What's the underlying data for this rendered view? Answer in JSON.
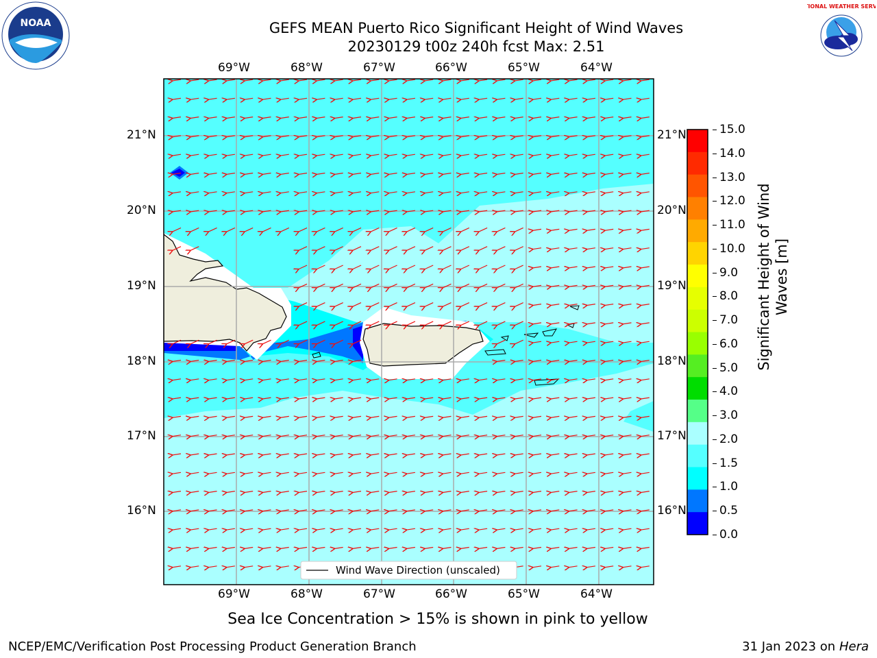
{
  "title_line1": "GEFS MEAN Puerto Rico Significant Height of Wind Waves",
  "title_line2": "20230129 t00z 240h fcst   Max: 2.51",
  "lon_labels": [
    "69°W",
    "68°W",
    "67°W",
    "66°W",
    "65°W",
    "64°W"
  ],
  "lat_labels": [
    "21°N",
    "20°N",
    "19°N",
    "18°N",
    "17°N",
    "16°N"
  ],
  "legend_text": "Wind Wave Direction (unscaled)",
  "colorbar": {
    "label_line1": "Significant Height of Wind",
    "label_line2": "Waves [m]",
    "ticks": [
      "15.0",
      "14.0",
      "13.0",
      "12.0",
      "11.0",
      "10.0",
      "9.0",
      "8.0",
      "7.0",
      "6.0",
      "5.0",
      "4.0",
      "3.0",
      "2.0",
      "1.5",
      "1.0",
      "0.5",
      "0.0"
    ],
    "colors": [
      "#ff0000",
      "#ff2a00",
      "#ff5500",
      "#ff8000",
      "#ffaa00",
      "#ffd400",
      "#ffff00",
      "#e6ff00",
      "#ccff00",
      "#99ff00",
      "#55ee22",
      "#00dd00",
      "#55ff88",
      "#aaffff",
      "#55ffff",
      "#00ffff",
      "#0077ff",
      "#0000ff"
    ]
  },
  "sea_ice_note": "Sea Ice Concentration > 15% is shown in pink to yellow",
  "footer_left": "NCEP/EMC/Verification Post Processing Product Generation Branch",
  "footer_right_prefix": "31 Jan 2023 on ",
  "footer_right_host": "Hera",
  "noaa_logo_text": "NOAA",
  "nws_logo_text": "NATIONAL WEATHER SERVICE",
  "colors": {
    "wave_light": "#aaffff",
    "wave_mid": "#55ffff",
    "wave_cyan": "#00ffff",
    "wave_blue": "#0077ff",
    "wave_dark": "#0000ff",
    "land": "#efeedd",
    "arrow": "#ee1111"
  }
}
